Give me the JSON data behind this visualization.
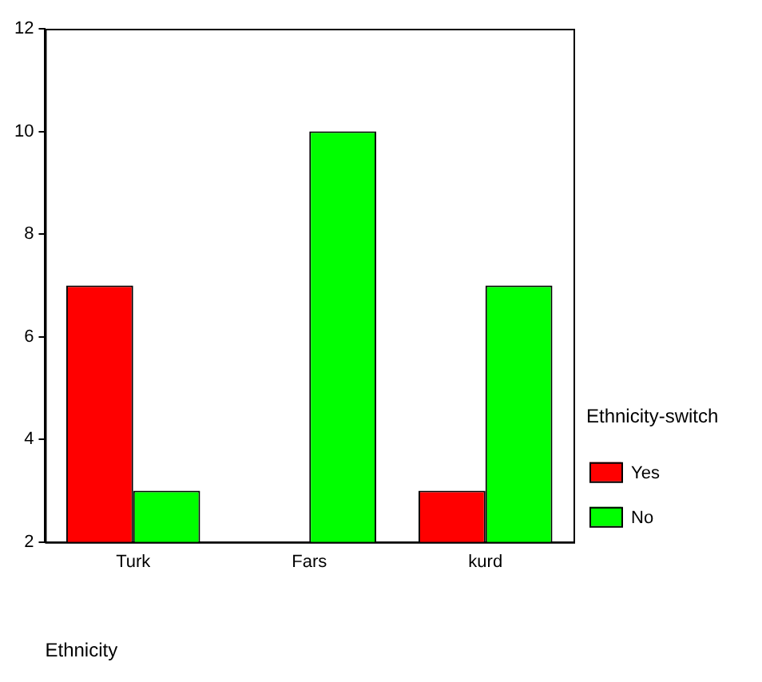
{
  "chart_data": {
    "type": "bar",
    "xlabel": "Ethnicity",
    "legend_title": "Ethnicity-switch",
    "categories": [
      "Turk",
      "Fars",
      "kurd"
    ],
    "series": [
      {
        "name": "Yes",
        "color": "#ff0000",
        "values": [
          7,
          null,
          3
        ]
      },
      {
        "name": "No",
        "color": "#00ff00",
        "values": [
          3,
          10,
          7
        ]
      }
    ],
    "ylim": [
      2,
      12
    ],
    "yticks": [
      2,
      4,
      6,
      8,
      10,
      12
    ],
    "grid": false,
    "legend": "right"
  }
}
